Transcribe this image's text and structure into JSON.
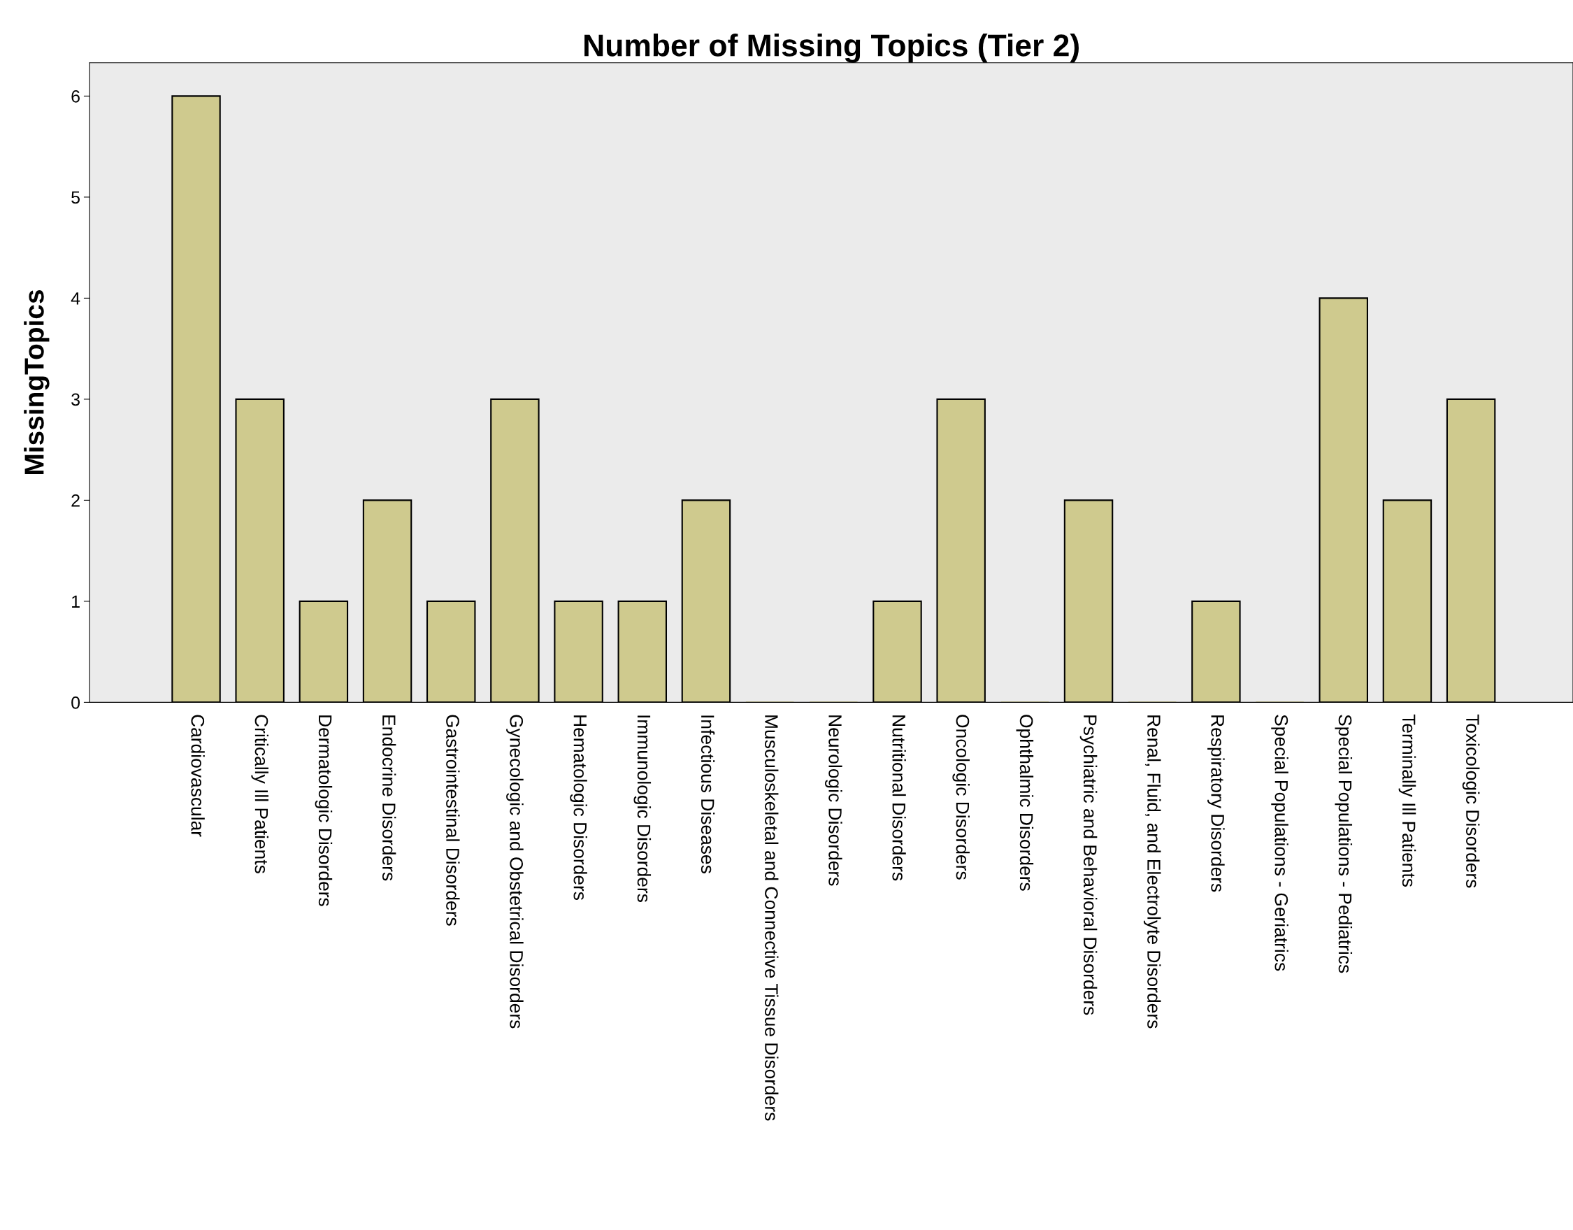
{
  "chart_data": {
    "type": "bar",
    "title": "Number of Missing Topics (Tier 2)",
    "ylabel": "MissingTopics",
    "categories": [
      "Cardiovascular",
      "Critically Ill Patients",
      "Dermatologic Disorders",
      "Endocrine Disorders",
      "Gastrointestinal Disorders",
      "Gynecologic and Obstetrical Disorders",
      "Hematologic Disorders",
      "Immunologic Disorders",
      "Infectious Diseases",
      "Musculoskeletal and Connective Tissue Disorders",
      "Neurologic Disorders",
      "Nutritional Disorders",
      "Oncologic Disorders",
      "Ophthalmic Disorders",
      "Psychiatric and Behavioral Disorders",
      "Renal, Fluid, and Electrolyte Disorders",
      "Respiratory Disorders",
      "Special Populations - Geriatrics",
      "Special Populations - Pediatrics",
      "Terminally Ill Patients",
      "Toxicologic Disorders"
    ],
    "values": [
      6,
      3,
      1,
      2,
      1,
      3,
      1,
      1,
      2,
      0,
      0,
      1,
      3,
      0,
      2,
      0,
      1,
      0,
      4,
      2,
      3
    ],
    "color": "#cfca8e",
    "ylim": [
      0,
      6.33
    ],
    "yticks": [
      0,
      1,
      2,
      3,
      4,
      5,
      6
    ],
    "grid": false,
    "legend": false
  }
}
